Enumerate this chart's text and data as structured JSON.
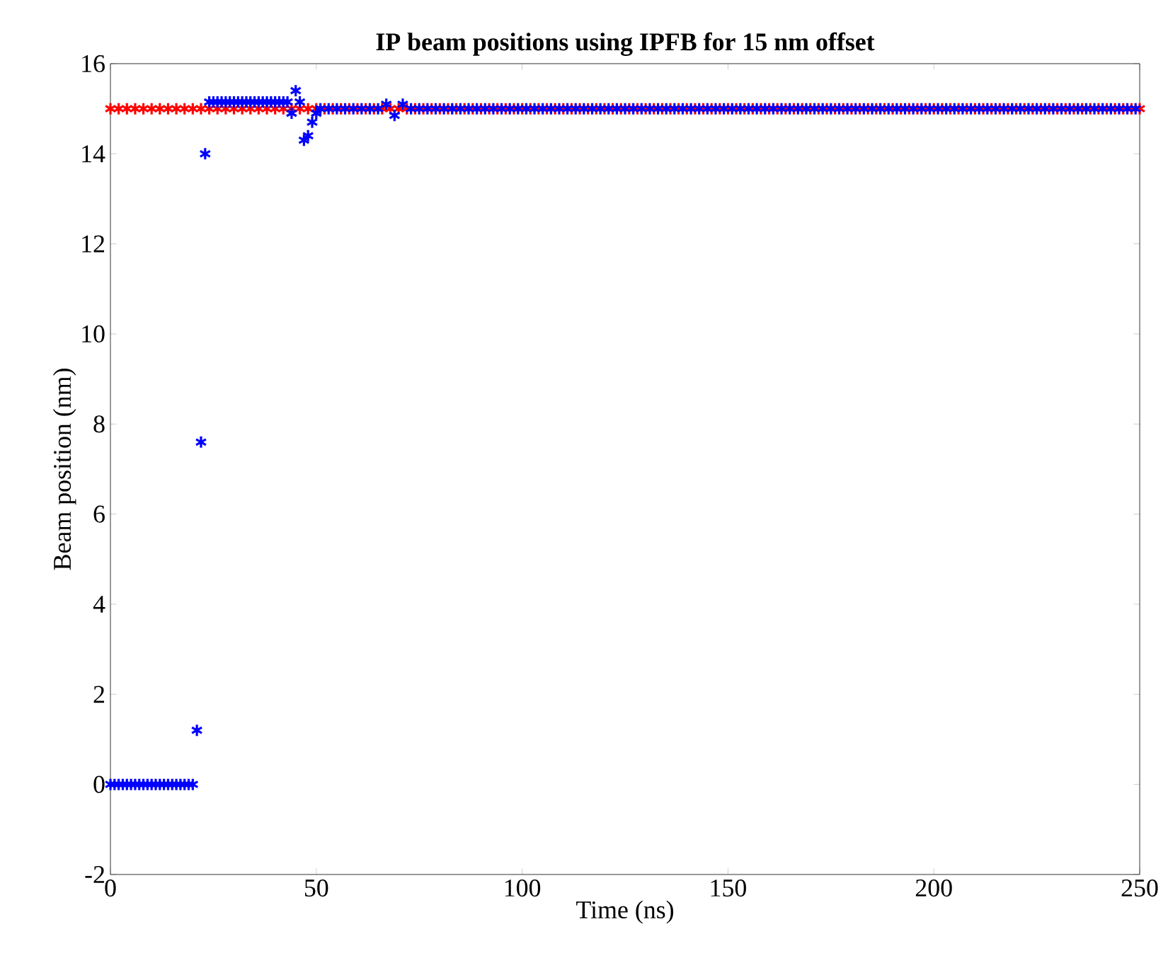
{
  "chart_data": {
    "type": "scatter",
    "title": "IP beam positions using IPFB for 15 nm offset",
    "xlabel": "Time (ns)",
    "ylabel": "Beam position (nm)",
    "xlim": [
      0,
      250
    ],
    "ylim": [
      -2,
      16
    ],
    "xticks": [
      0,
      50,
      100,
      150,
      200,
      250
    ],
    "yticks": [
      -2,
      0,
      2,
      4,
      6,
      8,
      10,
      12,
      14,
      16
    ],
    "marker": "cross",
    "grid": false,
    "series": [
      {
        "color": "#ff0000",
        "x": [
          0,
          2,
          4,
          6,
          8,
          10,
          12,
          14,
          16,
          18,
          20,
          22,
          24,
          26,
          28,
          30,
          32,
          34,
          36,
          38,
          40,
          42,
          44,
          46,
          48,
          50,
          52,
          54,
          56,
          58,
          60,
          62,
          64,
          66,
          68,
          70,
          72,
          74,
          76,
          78,
          80,
          82,
          84,
          86,
          88,
          90,
          92,
          94,
          96,
          98,
          100,
          102,
          104,
          106,
          108,
          110,
          112,
          114,
          116,
          118,
          120,
          122,
          124,
          126,
          128,
          130,
          132,
          134,
          136,
          138,
          140,
          142,
          144,
          146,
          148,
          150,
          152,
          154,
          156,
          158,
          160,
          162,
          164,
          166,
          168,
          170,
          172,
          174,
          176,
          178,
          180,
          182,
          184,
          186,
          188,
          190,
          192,
          194,
          196,
          198,
          200,
          202,
          204,
          206,
          208,
          210,
          212,
          214,
          216,
          218,
          220,
          222,
          224,
          226,
          228,
          230,
          232,
          234,
          236,
          238,
          240,
          242,
          244,
          246,
          248,
          250
        ],
        "values": [
          15,
          15,
          15,
          15,
          15,
          15,
          15,
          15,
          15,
          15,
          15,
          15,
          15,
          15,
          15,
          15,
          15,
          15,
          15,
          15,
          15,
          15,
          15,
          15,
          15,
          15,
          15,
          15,
          15,
          15,
          15,
          15,
          15,
          15,
          15,
          15,
          15,
          15,
          15,
          15,
          15,
          15,
          15,
          15,
          15,
          15,
          15,
          15,
          15,
          15,
          15,
          15,
          15,
          15,
          15,
          15,
          15,
          15,
          15,
          15,
          15,
          15,
          15,
          15,
          15,
          15,
          15,
          15,
          15,
          15,
          15,
          15,
          15,
          15,
          15,
          15,
          15,
          15,
          15,
          15,
          15,
          15,
          15,
          15,
          15,
          15,
          15,
          15,
          15,
          15,
          15,
          15,
          15,
          15,
          15,
          15,
          15,
          15,
          15,
          15,
          15,
          15,
          15,
          15,
          15,
          15,
          15,
          15,
          15,
          15,
          15,
          15,
          15,
          15,
          15,
          15,
          15,
          15,
          15,
          15,
          15,
          15,
          15,
          15,
          15,
          15
        ]
      },
      {
        "color": "#0000ff",
        "x": [
          0,
          1,
          2,
          3,
          4,
          5,
          6,
          7,
          8,
          9,
          10,
          11,
          12,
          13,
          14,
          15,
          16,
          17,
          18,
          19,
          20,
          21,
          22,
          23,
          24,
          25,
          26,
          27,
          28,
          29,
          30,
          31,
          32,
          33,
          34,
          35,
          36,
          37,
          38,
          39,
          40,
          41,
          42,
          43,
          44,
          45,
          46,
          47,
          48,
          49,
          50,
          51,
          53,
          55,
          57,
          59,
          61,
          63,
          65,
          67,
          69,
          71,
          73,
          75,
          77,
          79,
          81,
          83,
          85,
          87,
          89,
          91,
          93,
          95,
          97,
          99,
          101,
          103,
          105,
          107,
          109,
          111,
          113,
          115,
          117,
          119,
          121,
          123,
          125,
          127,
          129,
          131,
          133,
          135,
          137,
          139,
          141,
          143,
          145,
          147,
          149,
          151,
          153,
          155,
          157,
          159,
          161,
          163,
          165,
          167,
          169,
          171,
          173,
          175,
          177,
          179,
          181,
          183,
          185,
          187,
          189,
          191,
          193,
          195,
          197,
          199,
          201,
          203,
          205,
          207,
          209,
          211,
          213,
          215,
          217,
          219,
          221,
          223,
          225,
          227,
          229,
          231,
          233,
          235,
          237,
          239,
          241,
          243,
          245,
          247,
          249
        ],
        "values": [
          0,
          0,
          0,
          0,
          0,
          0,
          0,
          0,
          0,
          0,
          0,
          0,
          0,
          0,
          0,
          0,
          0,
          0,
          0,
          0,
          0,
          1.2,
          7.6,
          14,
          15.15,
          15.15,
          15.15,
          15.15,
          15.15,
          15.15,
          15.15,
          15.15,
          15.15,
          15.15,
          15.15,
          15.15,
          15.15,
          15.15,
          15.15,
          15.15,
          15.15,
          15.15,
          15.15,
          15.15,
          14.9,
          15.4,
          15.15,
          14.3,
          14.4,
          14.7,
          14.9,
          15,
          15,
          15,
          15,
          15,
          15,
          15,
          15,
          15.1,
          14.85,
          15.1,
          15,
          15,
          15,
          15,
          15,
          15,
          15,
          15,
          15,
          15,
          15,
          15,
          15,
          15,
          15,
          15,
          15,
          15,
          15,
          15,
          15,
          15,
          15,
          15,
          15,
          15,
          15,
          15,
          15,
          15,
          15,
          15,
          15,
          15,
          15,
          15,
          15,
          15,
          15,
          15,
          15,
          15,
          15,
          15,
          15,
          15,
          15,
          15,
          15,
          15,
          15,
          15,
          15,
          15,
          15,
          15,
          15,
          15,
          15,
          15,
          15,
          15,
          15,
          15,
          15,
          15,
          15,
          15,
          15,
          15,
          15,
          15,
          15,
          15,
          15,
          15,
          15,
          15,
          15,
          15,
          15,
          15,
          15,
          15,
          15,
          15,
          15,
          15,
          15
        ]
      }
    ]
  }
}
